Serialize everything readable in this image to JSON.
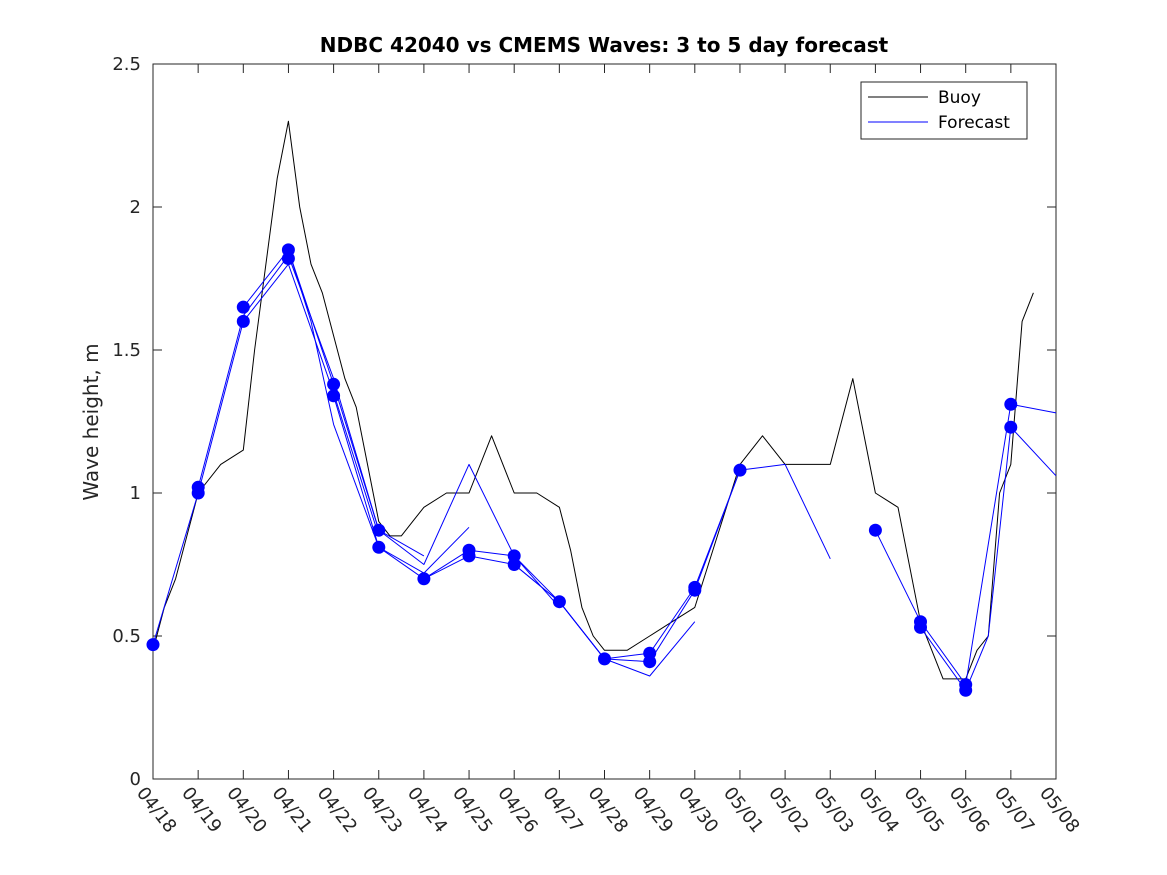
{
  "chart_data": {
    "type": "line",
    "title": "NDBC 42040 vs CMEMS Waves: 3 to 5 day forecast",
    "xlabel": "",
    "ylabel": "Wave height, m",
    "xlim": [
      "04/18",
      "05/08"
    ],
    "ylim": [
      0,
      2.5
    ],
    "yticks": [
      0,
      0.5,
      1,
      1.5,
      2,
      2.5
    ],
    "ytick_labels": [
      "0",
      "0.5",
      "1",
      "1.5",
      "2",
      "2.5"
    ],
    "xticks": [
      "04/18",
      "04/19",
      "04/20",
      "04/21",
      "04/22",
      "04/23",
      "04/24",
      "04/25",
      "04/26",
      "04/27",
      "04/28",
      "04/29",
      "04/30",
      "05/01",
      "05/02",
      "05/03",
      "05/04",
      "05/05",
      "05/06",
      "05/07",
      "05/08"
    ],
    "legend_position": "top-right",
    "grid": false,
    "colors": {
      "buoy": "#000000",
      "forecast": "#0000ff"
    },
    "buoy": {
      "name": "Buoy",
      "times": [
        "04/18 00:00",
        "04/18 06:00",
        "04/18 12:00",
        "04/19 00:00",
        "04/19 12:00",
        "04/20 00:00",
        "04/20 06:00",
        "04/20 12:00",
        "04/20 18:00",
        "04/21 00:00",
        "04/21 06:00",
        "04/21 12:00",
        "04/21 18:00",
        "04/22 00:00",
        "04/22 06:00",
        "04/22 12:00",
        "04/22 18:00",
        "04/23 00:00",
        "04/23 06:00",
        "04/23 12:00",
        "04/23 18:00",
        "04/24 00:00",
        "04/24 12:00",
        "04/25 00:00",
        "04/25 12:00",
        "04/26 00:00",
        "04/26 12:00",
        "04/27 00:00",
        "04/27 06:00",
        "04/27 12:00",
        "04/27 18:00",
        "04/28 00:00",
        "04/28 12:00",
        "04/29 00:00",
        "04/29 12:00",
        "04/30 00:00",
        "04/30 12:00",
        "05/01 00:00",
        "05/01 12:00",
        "05/02 00:00",
        "05/02 12:00",
        "05/03 00:00",
        "05/03 12:00",
        "05/04 00:00",
        "05/04 12:00",
        "05/05 00:00",
        "05/05 12:00",
        "05/06 00:00",
        "05/06 06:00",
        "05/06 12:00",
        "05/06 18:00",
        "05/07 00:00",
        "05/07 06:00",
        "05/07 12:00"
      ],
      "values": [
        0.45,
        0.6,
        0.7,
        1.0,
        1.1,
        1.15,
        1.5,
        1.8,
        2.1,
        2.3,
        2.0,
        1.8,
        1.7,
        1.55,
        1.4,
        1.3,
        1.1,
        0.9,
        0.85,
        0.85,
        0.9,
        0.95,
        1.0,
        1.0,
        1.2,
        1.0,
        1.0,
        0.95,
        0.8,
        0.6,
        0.5,
        0.45,
        0.45,
        0.5,
        0.55,
        0.6,
        0.85,
        1.1,
        1.2,
        1.1,
        1.1,
        1.1,
        1.4,
        1.0,
        0.95,
        0.55,
        0.35,
        0.35,
        0.45,
        0.5,
        1.0,
        1.1,
        1.6,
        1.7
      ]
    },
    "forecast": {
      "name": "Forecast",
      "runs": [
        {
          "times": [
            "04/18 00:00",
            "04/19 00:00",
            "04/20 00:00",
            "04/21 00:00",
            "04/22 00:00",
            "04/23 00:00"
          ],
          "values": [
            0.47,
            1.0,
            1.6,
            1.8,
            1.35,
            0.85
          ]
        },
        {
          "times": [
            "04/19 00:00",
            "04/20 00:00",
            "04/21 00:00",
            "04/22 00:00",
            "04/23 00:00",
            "04/24 00:00"
          ],
          "values": [
            1.02,
            1.62,
            1.83,
            1.4,
            0.87,
            0.78
          ]
        },
        {
          "times": [
            "04/20 00:00",
            "04/21 00:00",
            "04/21 12:00",
            "04/22 00:00",
            "04/23 00:00",
            "04/24 00:00",
            "04/25 00:00"
          ],
          "values": [
            1.65,
            1.85,
            1.6,
            1.24,
            0.81,
            0.72,
            0.88
          ]
        },
        {
          "times": [
            "04/21 00:00",
            "04/22 00:00",
            "04/23 00:00",
            "04/24 00:00",
            "04/25 00:00",
            "04/26 00:00",
            "04/27 00:00"
          ],
          "values": [
            1.85,
            1.38,
            0.87,
            0.75,
            1.1,
            0.78,
            0.6
          ]
        },
        {
          "times": [
            "04/22 00:00",
            "04/23 00:00",
            "04/24 00:00",
            "04/25 00:00",
            "04/26 00:00",
            "04/27 00:00",
            "04/28 00:00"
          ],
          "values": [
            1.34,
            0.81,
            0.7,
            0.8,
            0.78,
            0.62,
            0.42
          ]
        },
        {
          "times": [
            "04/24 00:00",
            "04/25 00:00",
            "04/26 00:00",
            "04/27 00:00",
            "04/28 00:00",
            "04/29 00:00",
            "04/30 00:00"
          ],
          "values": [
            0.7,
            0.78,
            0.75,
            0.62,
            0.42,
            0.36,
            0.55
          ]
        },
        {
          "times": [
            "04/26 00:00",
            "04/27 00:00",
            "04/28 00:00",
            "04/29 00:00",
            "04/30 00:00",
            "05/01 00:00"
          ],
          "values": [
            0.75,
            0.62,
            0.42,
            0.44,
            0.67,
            1.08
          ]
        },
        {
          "times": [
            "04/28 00:00",
            "04/29 00:00",
            "04/30 00:00",
            "05/01 00:00",
            "05/02 00:00",
            "05/03 00:00"
          ],
          "values": [
            0.42,
            0.41,
            0.66,
            1.08,
            1.1,
            0.77
          ]
        },
        {
          "times": [
            "05/04 00:00",
            "05/05 00:00",
            "05/06 00:00",
            "05/07 00:00",
            "05/08 00:00"
          ],
          "values": [
            0.87,
            0.55,
            0.33,
            1.31,
            1.28
          ]
        },
        {
          "times": [
            "05/05 00:00",
            "05/06 00:00",
            "05/06 12:00",
            "05/07 00:00",
            "05/08 00:00"
          ],
          "values": [
            0.53,
            0.31,
            0.5,
            1.23,
            1.06
          ]
        }
      ],
      "markers": [
        {
          "time": "04/18 00:00",
          "value": 0.47
        },
        {
          "time": "04/19 00:00",
          "value": 1.02
        },
        {
          "time": "04/19 00:00",
          "value": 1.0
        },
        {
          "time": "04/20 00:00",
          "value": 1.65
        },
        {
          "time": "04/20 00:00",
          "value": 1.6
        },
        {
          "time": "04/21 00:00",
          "value": 1.85
        },
        {
          "time": "04/21 00:00",
          "value": 1.82
        },
        {
          "time": "04/22 00:00",
          "value": 1.38
        },
        {
          "time": "04/22 00:00",
          "value": 1.34
        },
        {
          "time": "04/23 00:00",
          "value": 0.87
        },
        {
          "time": "04/23 00:00",
          "value": 0.81
        },
        {
          "time": "04/24 00:00",
          "value": 0.7
        },
        {
          "time": "04/25 00:00",
          "value": 0.8
        },
        {
          "time": "04/25 00:00",
          "value": 0.78
        },
        {
          "time": "04/26 00:00",
          "value": 0.78
        },
        {
          "time": "04/26 00:00",
          "value": 0.75
        },
        {
          "time": "04/27 00:00",
          "value": 0.62
        },
        {
          "time": "04/28 00:00",
          "value": 0.42
        },
        {
          "time": "04/29 00:00",
          "value": 0.44
        },
        {
          "time": "04/29 00:00",
          "value": 0.41
        },
        {
          "time": "04/30 00:00",
          "value": 0.67
        },
        {
          "time": "04/30 00:00",
          "value": 0.66
        },
        {
          "time": "05/01 00:00",
          "value": 1.08
        },
        {
          "time": "05/04 00:00",
          "value": 0.87
        },
        {
          "time": "05/05 00:00",
          "value": 0.55
        },
        {
          "time": "05/05 00:00",
          "value": 0.53
        },
        {
          "time": "05/06 00:00",
          "value": 0.33
        },
        {
          "time": "05/06 00:00",
          "value": 0.31
        },
        {
          "time": "05/07 00:00",
          "value": 1.31
        },
        {
          "time": "05/07 00:00",
          "value": 1.23
        }
      ]
    }
  }
}
